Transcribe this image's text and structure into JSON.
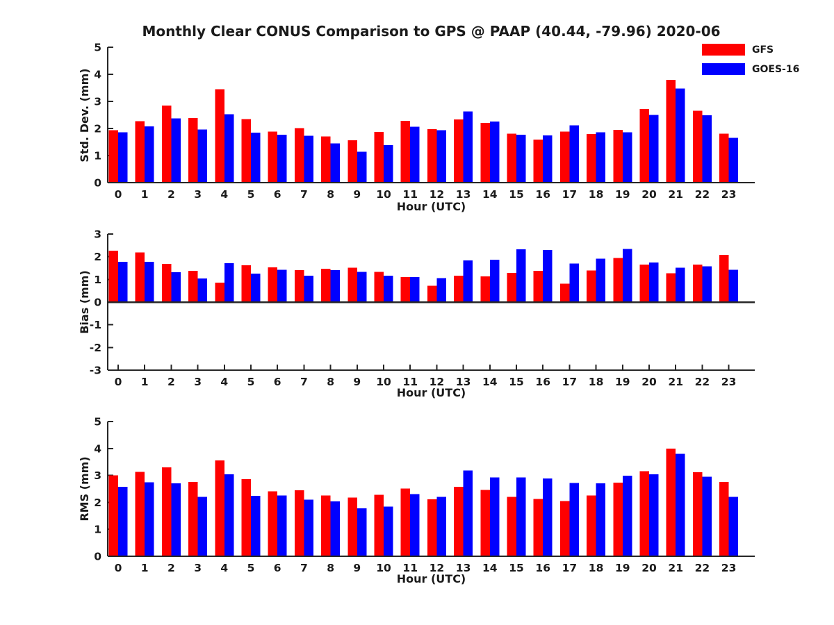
{
  "figure": {
    "title": "Monthly Clear CONUS Comparison to GPS @ PAAP (40.44, -79.96) 2020-06",
    "background": "#ffffff",
    "axis_color": "#262626",
    "legend": {
      "position": "top-right",
      "entries": [
        {
          "label": "GFS",
          "color": "#ff0000"
        },
        {
          "label": "GOES-16",
          "color": "#0000ff"
        }
      ]
    }
  },
  "chart_data": [
    {
      "type": "bar",
      "title": "",
      "ylabel": "Std. Dev. (mm)",
      "xlabel": "Hour (UTC)",
      "grid": false,
      "legend_position": "top-right of figure",
      "ylim": [
        0,
        5
      ],
      "yticks": [
        0,
        1,
        2,
        3,
        4,
        5
      ],
      "categories": [
        "0",
        "1",
        "2",
        "3",
        "4",
        "5",
        "6",
        "7",
        "8",
        "9",
        "10",
        "11",
        "12",
        "13",
        "14",
        "15",
        "16",
        "17",
        "18",
        "19",
        "20",
        "21",
        "22",
        "23"
      ],
      "series": [
        {
          "name": "GFS",
          "color": "#ff0000",
          "values": [
            1.93,
            2.27,
            2.85,
            2.38,
            3.45,
            2.34,
            1.88,
            2.01,
            1.71,
            1.56,
            1.87,
            2.28,
            1.97,
            2.33,
            2.2,
            1.81,
            1.59,
            1.89,
            1.79,
            1.95,
            2.72,
            3.8,
            2.66,
            1.81
          ]
        },
        {
          "name": "GOES-16",
          "color": "#0000ff",
          "values": [
            1.86,
            2.08,
            2.37,
            1.96,
            2.52,
            1.84,
            1.77,
            1.73,
            1.45,
            1.14,
            1.38,
            2.06,
            1.94,
            2.63,
            2.26,
            1.77,
            1.74,
            2.12,
            1.86,
            1.86,
            2.5,
            3.48,
            2.49,
            1.66
          ]
        }
      ]
    },
    {
      "type": "bar",
      "title": "",
      "ylabel": "Bias (mm)",
      "xlabel": "Hour (UTC)",
      "grid": false,
      "legend_position": "top-right of figure",
      "ylim": [
        -3,
        3
      ],
      "yticks": [
        -3,
        -2,
        -1,
        0,
        1,
        2,
        3
      ],
      "categories": [
        "0",
        "1",
        "2",
        "3",
        "4",
        "5",
        "6",
        "7",
        "8",
        "9",
        "10",
        "11",
        "12",
        "13",
        "14",
        "15",
        "16",
        "17",
        "18",
        "19",
        "20",
        "21",
        "22",
        "23"
      ],
      "series": [
        {
          "name": "GFS",
          "color": "#ff0000",
          "values": [
            2.26,
            2.19,
            1.68,
            1.37,
            0.86,
            1.62,
            1.53,
            1.41,
            1.47,
            1.52,
            1.33,
            1.1,
            0.72,
            1.16,
            1.13,
            1.28,
            1.38,
            0.81,
            1.39,
            1.95,
            1.65,
            1.27,
            1.66,
            2.08
          ]
        },
        {
          "name": "GOES-16",
          "color": "#0000ff",
          "values": [
            1.77,
            1.78,
            1.31,
            1.04,
            1.71,
            1.26,
            1.42,
            1.17,
            1.41,
            1.33,
            1.17,
            1.1,
            1.06,
            1.84,
            1.87,
            2.32,
            2.29,
            1.7,
            1.92,
            2.34,
            1.75,
            1.52,
            1.58,
            1.43
          ]
        }
      ]
    },
    {
      "type": "bar",
      "title": "",
      "ylabel": "RMS (mm)",
      "xlabel": "Hour (UTC)",
      "grid": false,
      "legend_position": "top-right of figure",
      "ylim": [
        0,
        5
      ],
      "yticks": [
        0,
        1,
        2,
        3,
        4,
        5
      ],
      "categories": [
        "0",
        "1",
        "2",
        "3",
        "4",
        "5",
        "6",
        "7",
        "8",
        "9",
        "10",
        "11",
        "12",
        "13",
        "14",
        "15",
        "16",
        "17",
        "18",
        "19",
        "20",
        "21",
        "22",
        "23"
      ],
      "series": [
        {
          "name": "GFS",
          "color": "#ff0000",
          "values": [
            3.0,
            3.13,
            3.3,
            2.76,
            3.56,
            2.86,
            2.41,
            2.45,
            2.26,
            2.18,
            2.28,
            2.51,
            2.11,
            2.58,
            2.46,
            2.2,
            2.12,
            2.05,
            2.26,
            2.73,
            3.16,
            4.0,
            3.12,
            2.76
          ]
        },
        {
          "name": "GOES-16",
          "color": "#0000ff",
          "values": [
            2.58,
            2.74,
            2.71,
            2.21,
            3.04,
            2.24,
            2.26,
            2.1,
            2.03,
            1.78,
            1.84,
            2.31,
            2.21,
            3.18,
            2.92,
            2.92,
            2.89,
            2.72,
            2.7,
            2.99,
            3.04,
            3.8,
            2.95,
            2.2
          ]
        }
      ]
    }
  ]
}
